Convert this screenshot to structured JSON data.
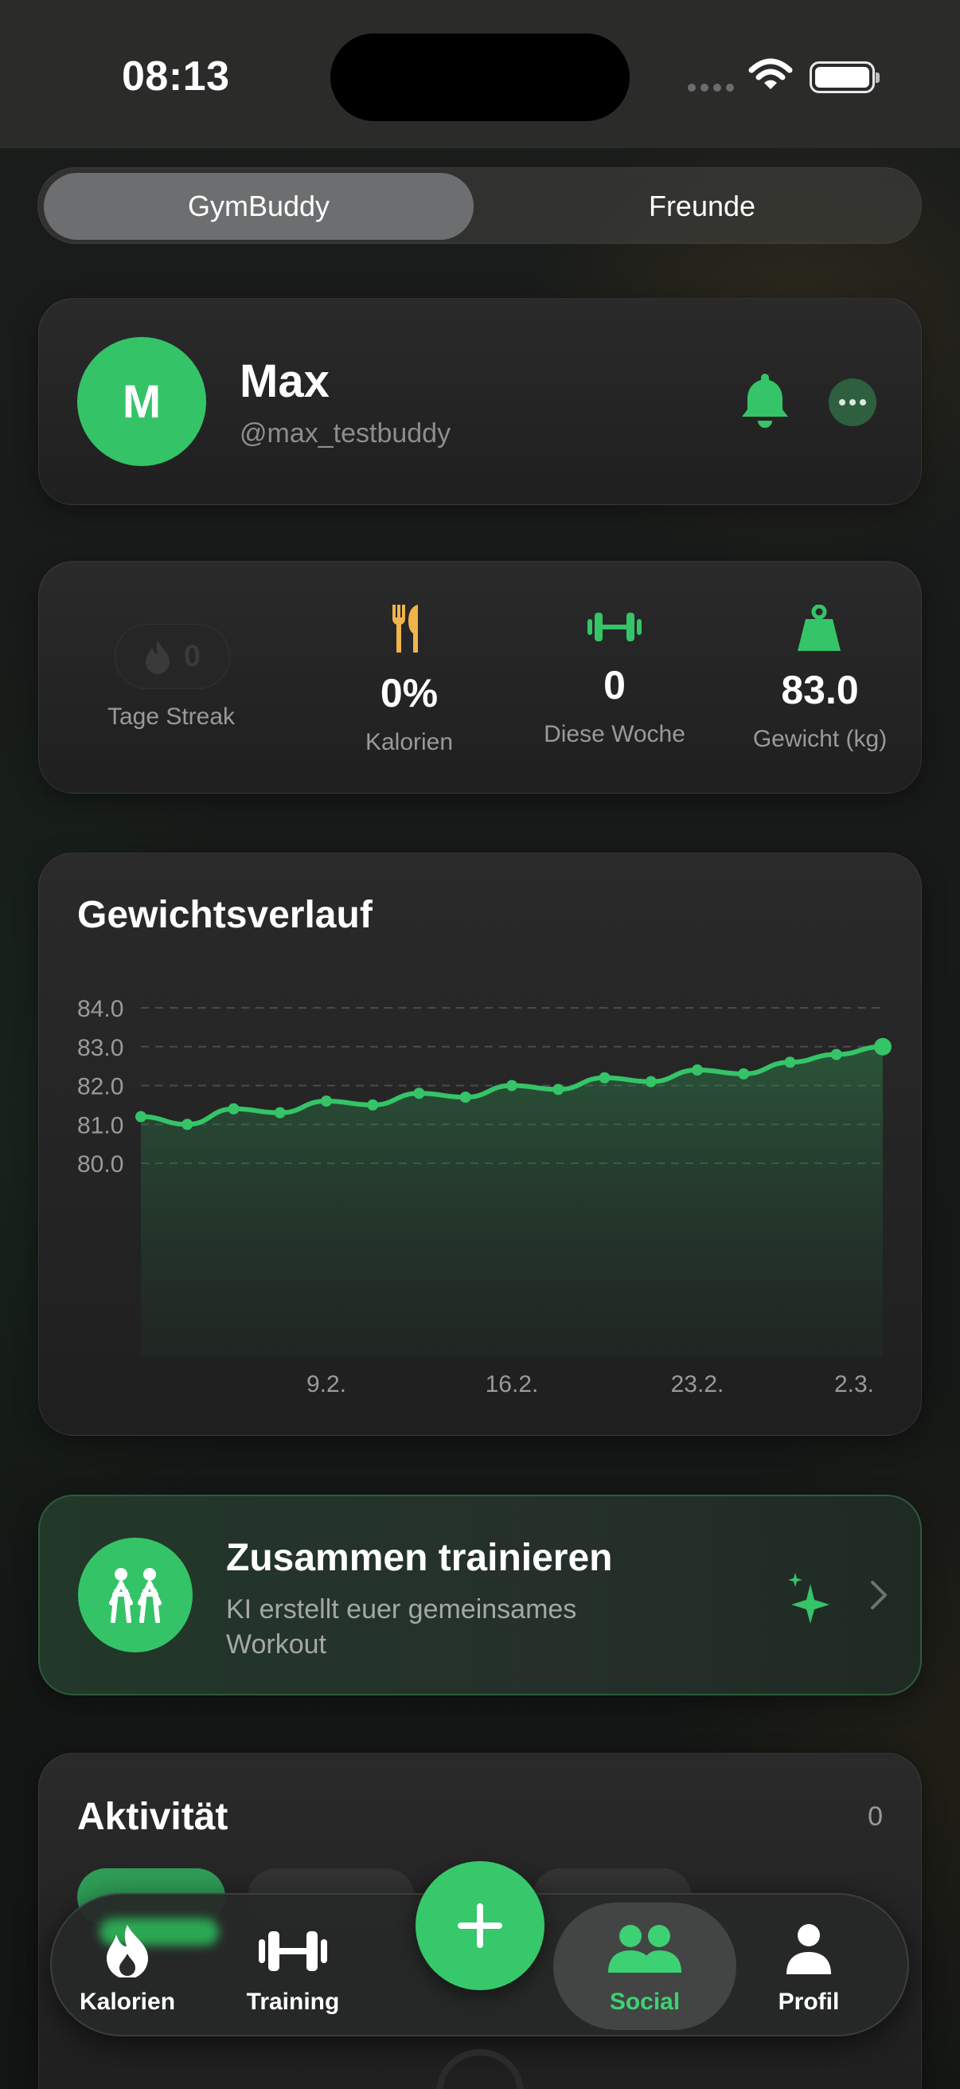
{
  "status_bar": {
    "time": "08:13"
  },
  "segmented": {
    "active": "GymBuddy",
    "inactive": "Freunde"
  },
  "profile": {
    "avatar_initial": "M",
    "name": "Max",
    "handle": "@max_testbuddy"
  },
  "stats": {
    "streak": {
      "value": "0",
      "label": "Tage Streak"
    },
    "calories": {
      "value": "0%",
      "label": "Kalorien"
    },
    "week": {
      "value": "0",
      "label": "Diese Woche"
    },
    "weight": {
      "value": "83.0",
      "label": "Gewicht (kg)"
    }
  },
  "chart_data": {
    "type": "area",
    "title": "Gewichtsverlauf",
    "xlabel": "",
    "ylabel": "",
    "ylim": [
      79.55,
      84.0
    ],
    "y_ticks": [
      84.0,
      83.0,
      82.0,
      81.0,
      80.0
    ],
    "x_tick_labels": [
      "9.2.",
      "16.2.",
      "23.2.",
      "2.3."
    ],
    "grid": true,
    "series": [
      {
        "values": [
          81.2,
          81.0,
          81.4,
          81.3,
          81.6,
          81.5,
          81.8,
          81.7,
          82.0,
          81.9,
          82.2,
          82.1,
          82.4,
          82.3,
          82.6,
          82.8,
          83.0
        ]
      }
    ],
    "colors": {
      "line": "#35c467"
    }
  },
  "together": {
    "title": "Zusammen trainieren",
    "subtitle": "KI erstellt euer gemeinsames Workout"
  },
  "activity": {
    "title": "Aktivität",
    "count": "0"
  },
  "tabbar": {
    "items": [
      {
        "label": "Kalorien",
        "icon": "flame-icon"
      },
      {
        "label": "Training",
        "icon": "dumbbell-icon"
      },
      {
        "label": "Social",
        "icon": "people-icon",
        "active": true
      },
      {
        "label": "Profil",
        "icon": "person-icon"
      }
    ],
    "fab_icon": "plus-icon"
  },
  "colors": {
    "accent": "#35c467",
    "calories": "#f0b44c",
    "background": "#141715"
  }
}
